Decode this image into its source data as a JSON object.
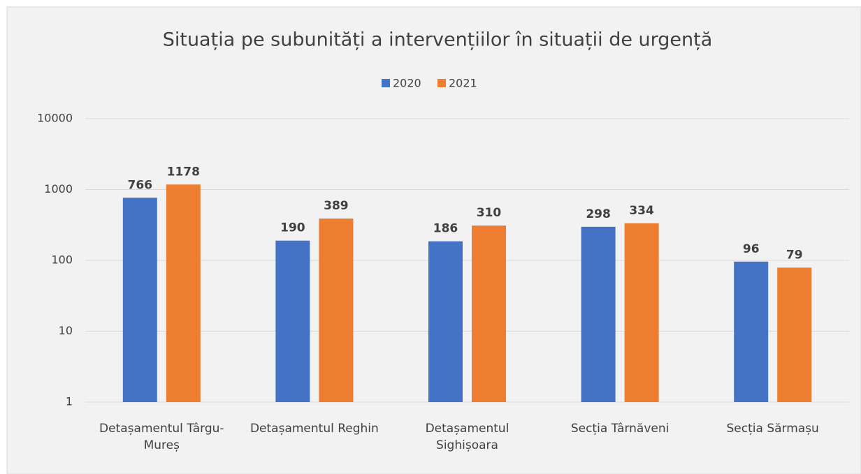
{
  "chart_data": {
    "type": "bar",
    "title": "Situația pe subunități a intervențiilor în situații de urgență",
    "categories": [
      "Detașamentul Târgu-Mureș",
      "Detașamentul Reghin",
      "Detașamentul Sighișoara",
      "Secția Târnăveni",
      "Secția Sărmașu"
    ],
    "series": [
      {
        "name": "2020",
        "color": "#4472c4",
        "values": [
          766,
          190,
          186,
          298,
          96
        ]
      },
      {
        "name": "2021",
        "color": "#ed7d31",
        "values": [
          1178,
          389,
          310,
          334,
          79
        ]
      }
    ],
    "ylim": [
      1,
      10000
    ],
    "yticks": [
      1,
      10,
      100,
      1000,
      10000
    ],
    "log_scale": true,
    "grid": true,
    "legend": "top"
  }
}
